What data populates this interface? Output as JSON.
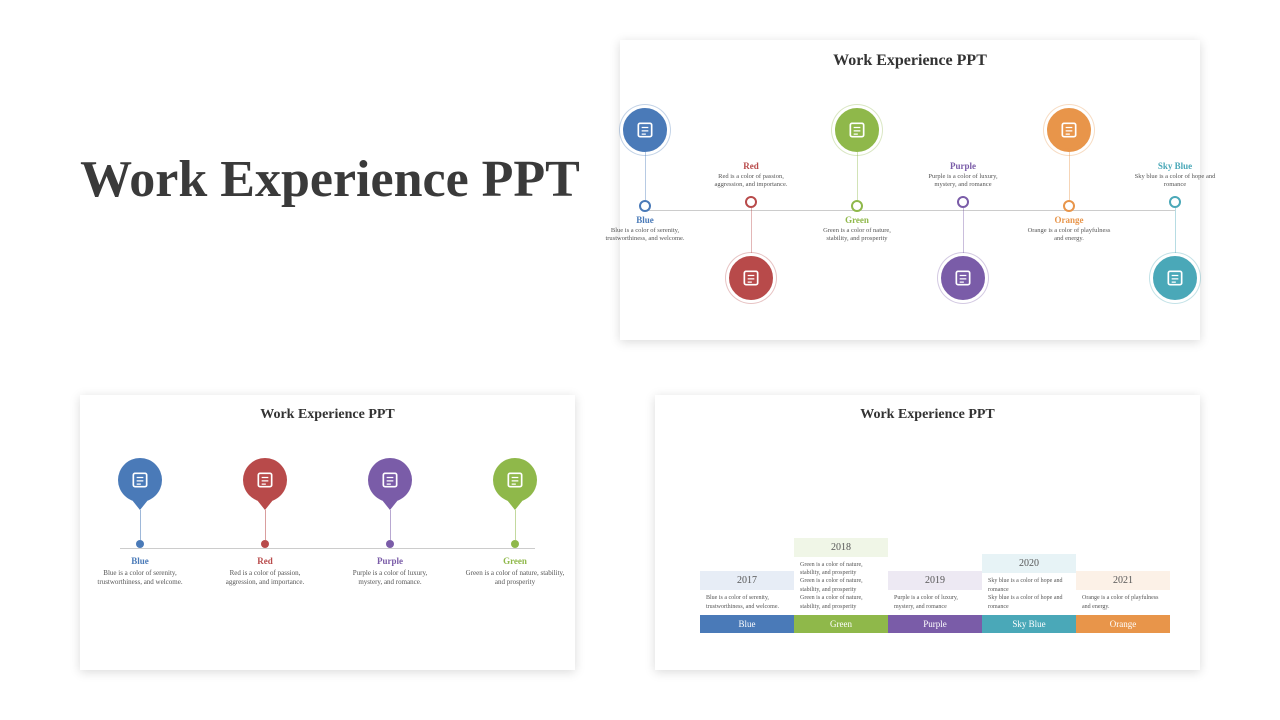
{
  "main_title": "Work Experience PPT",
  "slide_title": "Work Experience PPT",
  "colors": {
    "blue": "#4a7ab8",
    "red": "#b84a4a",
    "green": "#8fb84a",
    "purple": "#7a5ca8",
    "orange": "#e8954a",
    "skyblue": "#4aa8b8",
    "text": "#3a3a3a",
    "desc": "#666666"
  },
  "slide1": {
    "items": [
      {
        "label": "Blue",
        "color_key": "blue",
        "up": true,
        "desc": "Blue is a color of serenity, trustworthiness, and welcome."
      },
      {
        "label": "Red",
        "color_key": "red",
        "up": false,
        "desc": "Red is a color of passion, aggression, and importance."
      },
      {
        "label": "Green",
        "color_key": "green",
        "up": true,
        "desc": "Green is a color of nature, stability, and prosperity"
      },
      {
        "label": "Purple",
        "color_key": "purple",
        "up": false,
        "desc": "Purple is a color of luxury, mystery, and romance"
      },
      {
        "label": "Orange",
        "color_key": "orange",
        "up": true,
        "desc": "Orange is a color of playfulness and energy."
      },
      {
        "label": "Sky Blue",
        "color_key": "skyblue",
        "up": false,
        "desc": "Sky blue is a color of hope and romance"
      }
    ]
  },
  "slide2": {
    "items": [
      {
        "label": "Blue",
        "color_key": "blue",
        "desc": "Blue is a color of serenity, trustworthiness, and welcome."
      },
      {
        "label": "Red",
        "color_key": "red",
        "desc": "Red is a color of passion, aggression, and importance."
      },
      {
        "label": "Purple",
        "color_key": "purple",
        "desc": "Purple is a color of luxury, mystery, and romance."
      },
      {
        "label": "Green",
        "color_key": "green",
        "desc": "Green is a color of nature, stability, and prosperity"
      }
    ]
  },
  "slide3": {
    "items": [
      {
        "year": "2017",
        "label": "Blue",
        "color_key": "blue",
        "lines": [
          "Blue is a color of serenity, trustworthiness, and welcome."
        ],
        "tall": false
      },
      {
        "year": "2018",
        "label": "Green",
        "color_key": "green",
        "lines": [
          "Green is a color of nature, stability, and prosperity",
          "Green is a color of nature, stability, and prosperity",
          "Green is a color of nature, stability, and prosperity"
        ],
        "tall": true
      },
      {
        "year": "2019",
        "label": "Purple",
        "color_key": "purple",
        "lines": [
          "Purple is a color of luxury, mystery, and romance"
        ],
        "tall": false
      },
      {
        "year": "2020",
        "label": "Sky Blue",
        "color_key": "skyblue",
        "lines": [
          "Sky blue is a color of hope and romance",
          "Sky blue is a color of hope and romance"
        ],
        "tall": true
      },
      {
        "year": "2021",
        "label": "Orange",
        "color_key": "orange",
        "lines": [
          "Orange is a color of playfulness and energy."
        ],
        "tall": false
      }
    ]
  }
}
